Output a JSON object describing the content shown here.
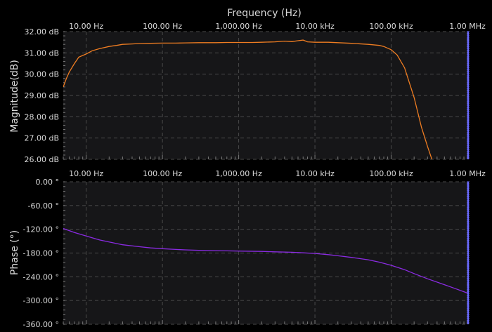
{
  "chart_data": [
    {
      "type": "line",
      "panel": "magnitude",
      "title": "",
      "xlabel": "Frequency (Hz)",
      "ylabel": "Magnitude(dB)",
      "x_scale": "log",
      "xlim": [
        5,
        1000000
      ],
      "ylim": [
        26,
        32
      ],
      "x_ticks": [
        10,
        100,
        1000,
        10000,
        100000,
        1000000
      ],
      "x_tick_labels": [
        "10.00 Hz",
        "100.00 Hz",
        "1,000.00 Hz",
        "10.00 kHz",
        "100.00 kHz",
        "1.00 MHz"
      ],
      "y_ticks": [
        32,
        31,
        30,
        29,
        28,
        27,
        26
      ],
      "y_tick_labels": [
        "32.00 dB",
        "31.00 dB",
        "30.00 dB",
        "29.00 dB",
        "28.00 dB",
        "27.00 dB",
        "26.00 dB"
      ],
      "grid": true,
      "color": "#ef7d22",
      "cursor_color": "#6a6aff",
      "series": [
        {
          "x": [
            5,
            5.5,
            6,
            7,
            8,
            10,
            12,
            15,
            20,
            25,
            30,
            40,
            50,
            70,
            100,
            150,
            200,
            300,
            500,
            700,
            1000,
            1500,
            2000,
            3000,
            4000,
            5000,
            6000,
            7000,
            8000,
            10000,
            15000,
            20000,
            30000,
            50000,
            70000,
            80000,
            100000,
            120000,
            150000,
            200000,
            250000,
            300000,
            350000
          ],
          "y": [
            29.4,
            29.8,
            30.1,
            30.5,
            30.8,
            30.95,
            31.1,
            31.2,
            31.3,
            31.35,
            31.4,
            31.42,
            31.44,
            31.45,
            31.46,
            31.46,
            31.47,
            31.48,
            31.48,
            31.49,
            31.49,
            31.49,
            31.5,
            31.52,
            31.55,
            31.53,
            31.57,
            31.6,
            31.52,
            31.5,
            31.5,
            31.48,
            31.45,
            31.4,
            31.35,
            31.3,
            31.15,
            30.9,
            30.3,
            28.9,
            27.5,
            26.6,
            25.9
          ]
        }
      ]
    },
    {
      "type": "line",
      "panel": "phase",
      "title": "",
      "xlabel": "",
      "ylabel": "Phase (°)",
      "x_scale": "log",
      "xlim": [
        5,
        1000000
      ],
      "ylim": [
        -360,
        0
      ],
      "x_ticks": [
        10,
        100,
        1000,
        10000,
        100000,
        1000000
      ],
      "x_tick_labels": [
        "10.00 Hz",
        "100.00 Hz",
        "1,000.00 Hz",
        "10.00 kHz",
        "100.00 kHz",
        "1.00 MHz"
      ],
      "y_ticks": [
        0,
        -60,
        -120,
        -180,
        -240,
        -300,
        -360
      ],
      "y_tick_labels": [
        "0.00 °",
        "-60.00 °",
        "-120.00 °",
        "-180.00 °",
        "-240.00 °",
        "-300.00 °",
        "-360.00 °"
      ],
      "grid": true,
      "color": "#8a2be2",
      "cursor_color": "#6a6aff",
      "series": [
        {
          "x": [
            5,
            7,
            10,
            15,
            20,
            30,
            50,
            70,
            100,
            150,
            200,
            300,
            500,
            700,
            1000,
            2000,
            3000,
            5000,
            7000,
            10000,
            15000,
            20000,
            30000,
            50000,
            70000,
            100000,
            150000,
            200000,
            300000,
            500000,
            700000,
            1000000
          ],
          "y": [
            -118,
            -128,
            -137,
            -147,
            -152,
            -159,
            -164,
            -167,
            -169,
            -171,
            -172,
            -173,
            -174,
            -174.5,
            -175,
            -176,
            -177,
            -178,
            -179.5,
            -181,
            -184,
            -187,
            -191,
            -197,
            -203,
            -211,
            -222,
            -232,
            -245,
            -260,
            -270,
            -281
          ]
        }
      ]
    }
  ]
}
